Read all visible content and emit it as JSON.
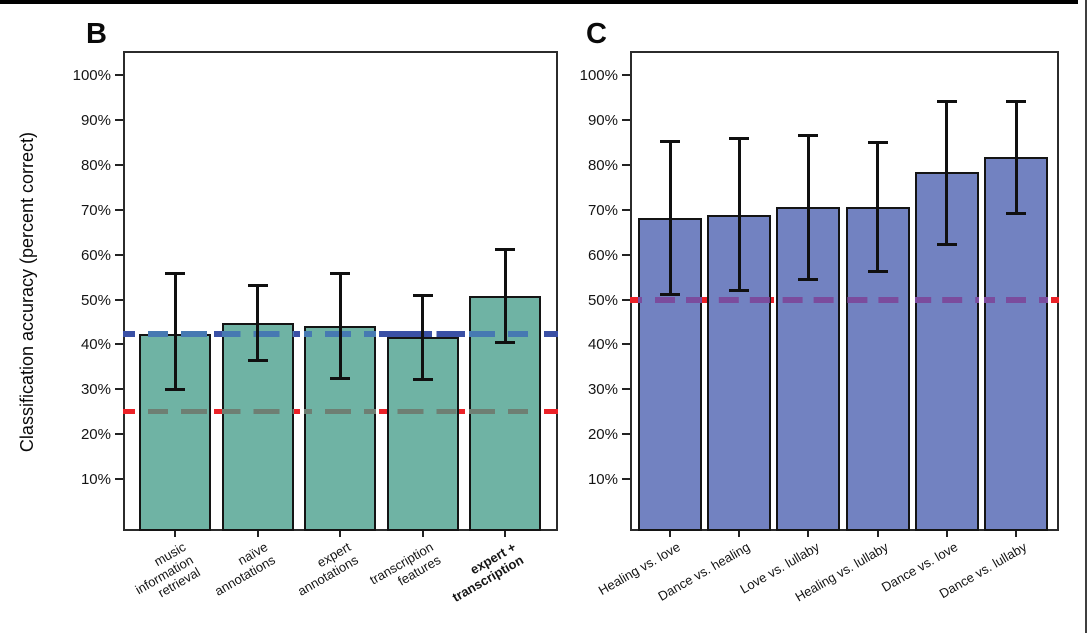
{
  "figure": {
    "y_axis_title": "Classification accuracy (percent correct)",
    "background": "#ffffff"
  },
  "chart_data": [
    {
      "type": "bar",
      "panel_label": "B",
      "ylabel": "Classification accuracy (percent correct)",
      "ytick_labels": [
        "100%",
        "90%",
        "80%",
        "70%",
        "60%",
        "50%",
        "40%",
        "30%",
        "20%",
        "10%"
      ],
      "yticks_percent": [
        100,
        90,
        80,
        70,
        60,
        50,
        40,
        30,
        20,
        10
      ],
      "ylim": [
        0,
        105
      ],
      "grid": "off",
      "bar_fill": "#6FB3A4",
      "bar_outline": "#141414",
      "categories": [
        "music information retrieval",
        "naïve annotations",
        "expert annotations",
        "transcription features",
        "expert + transcription"
      ],
      "category_lines": [
        [
          "music",
          "information",
          "retrieval"
        ],
        [
          "naïve",
          "annotations"
        ],
        [
          "expert",
          "annotations"
        ],
        [
          "transcription",
          "features"
        ],
        [
          "expert +",
          "transcription"
        ]
      ],
      "emphasized_category": "expert + transcription",
      "values": [
        42.4,
        44.8,
        44.1,
        41.6,
        50.8
      ],
      "error_low": [
        29.8,
        36.4,
        32.3,
        32.0,
        40.3
      ],
      "error_high": [
        55.9,
        53.3,
        55.8,
        50.9,
        61.3
      ],
      "reference_lines": [
        {
          "value": 42.4,
          "style": "dashed",
          "line_color": "#3A50A5",
          "over_bar_color": "#4679B2"
        },
        {
          "value": 25.0,
          "style": "dashed",
          "line_color": "#EC2127",
          "over_bar_color": "#6E7F73"
        }
      ]
    },
    {
      "type": "bar",
      "panel_label": "C",
      "ylabel": "",
      "ytick_labels": [
        "100%",
        "90%",
        "80%",
        "70%",
        "60%",
        "50%",
        "40%",
        "30%",
        "20%",
        "10%"
      ],
      "yticks_percent": [
        100,
        90,
        80,
        70,
        60,
        50,
        40,
        30,
        20,
        10
      ],
      "ylim": [
        0,
        105
      ],
      "grid": "off",
      "bar_fill": "#7282C1",
      "bar_outline": "#141414",
      "categories": [
        "Healing vs. love",
        "Dance vs. healing",
        "Love vs. lullaby",
        "Healing vs. lullaby",
        "Dance vs. love",
        "Dance vs. lullaby"
      ],
      "category_lines": [
        [
          "Healing vs. love"
        ],
        [
          "Dance vs. healing"
        ],
        [
          "Love vs. lullaby"
        ],
        [
          "Healing vs. lullaby"
        ],
        [
          "Dance vs. love"
        ],
        [
          "Dance vs. lullaby"
        ]
      ],
      "emphasized_category": "",
      "values": [
        68.2,
        68.9,
        70.6,
        70.6,
        78.3,
        81.7
      ],
      "error_low": [
        51.0,
        51.8,
        54.3,
        56.1,
        62.2,
        69.1
      ],
      "error_high": [
        85.4,
        86.0,
        86.7,
        85.1,
        94.3,
        94.3
      ],
      "reference_lines": [
        {
          "value": 50.0,
          "style": "dashed",
          "line_color": "#EC2127",
          "over_bar_color": "#7B4C9D"
        }
      ]
    }
  ]
}
